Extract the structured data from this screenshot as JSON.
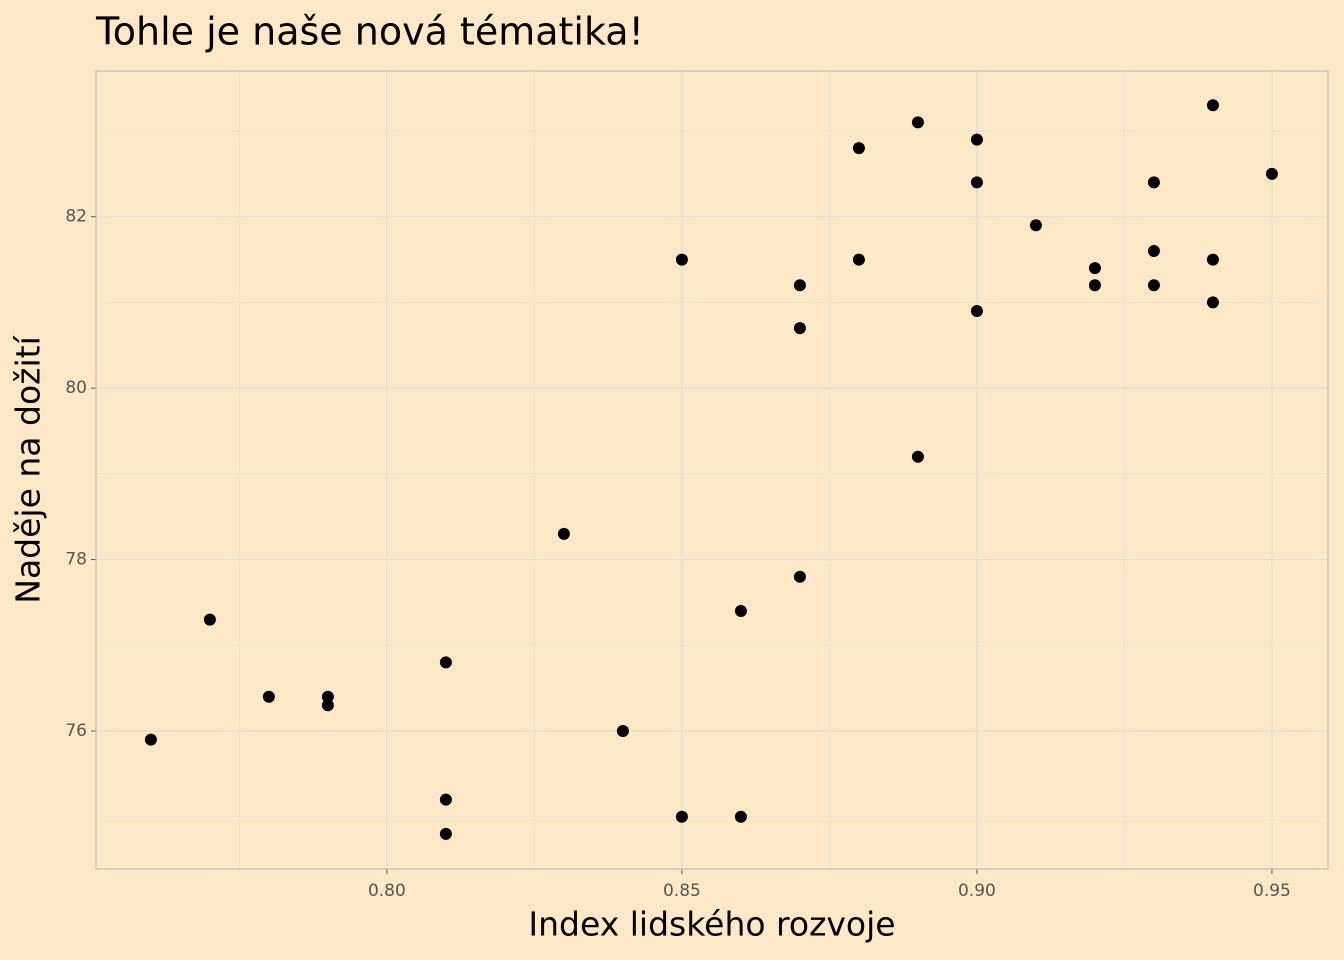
{
  "chart_data": {
    "type": "scatter",
    "title": "Tohle je naše nová tématika!",
    "x_label": "Index lidského rozvoje",
    "y_label": "Naděje na dožití",
    "x": [
      0.76,
      0.77,
      0.78,
      0.79,
      0.79,
      0.81,
      0.81,
      0.81,
      0.83,
      0.84,
      0.85,
      0.85,
      0.86,
      0.86,
      0.87,
      0.87,
      0.87,
      0.88,
      0.88,
      0.89,
      0.89,
      0.9,
      0.9,
      0.9,
      0.91,
      0.92,
      0.92,
      0.93,
      0.93,
      0.93,
      0.94,
      0.94,
      0.94,
      0.95
    ],
    "values": [
      75.9,
      77.3,
      76.4,
      76.4,
      76.3,
      76.8,
      75.2,
      74.8,
      78.3,
      76.0,
      75.0,
      81.5,
      75.0,
      77.4,
      77.8,
      81.2,
      80.7,
      82.8,
      81.5,
      83.1,
      79.2,
      82.9,
      82.4,
      80.9,
      81.9,
      81.4,
      81.2,
      82.4,
      81.6,
      81.2,
      83.3,
      81.5,
      81.0,
      82.5
    ],
    "color": "#000000",
    "xlim": [
      0.7507,
      0.9595
    ],
    "ylim": [
      74.39,
      83.7
    ],
    "xticks": [
      {
        "value": 0.8,
        "label": "0.80"
      },
      {
        "value": 0.85,
        "label": "0.85"
      },
      {
        "value": 0.9,
        "label": "0.90"
      },
      {
        "value": 0.95,
        "label": "0.95"
      }
    ],
    "yticks": [
      76,
      78,
      80,
      82
    ],
    "x_minor_ticks": [
      0.775,
      0.825,
      0.875,
      0.925
    ],
    "y_minor_ticks": [
      75,
      77,
      79,
      81,
      83
    ],
    "grid": true
  }
}
